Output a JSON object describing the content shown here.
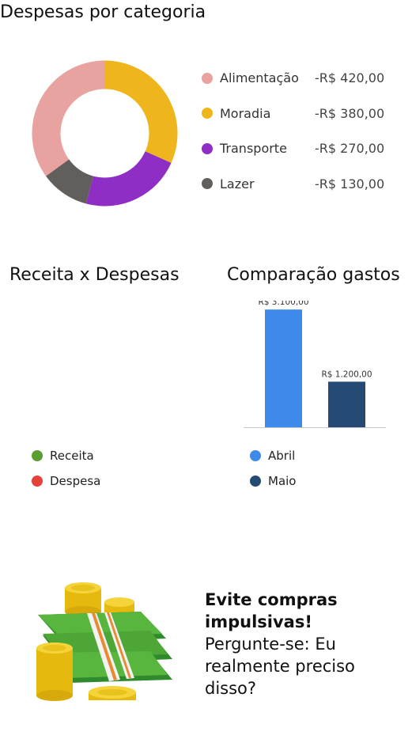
{
  "donut_title": "Despesas por categoria",
  "revenue_title": "Receita x Despesas",
  "compare_title": "Comparação gastos",
  "tip": {
    "headline": "Evite compras impulsivas!",
    "body": "Pergunte-se: Eu realmente preciso disso?"
  },
  "revenue_legend": [
    {
      "label": "Receita",
      "color": "#5a9e32"
    },
    {
      "label": "Despesa",
      "color": "#e8413a"
    }
  ],
  "chart_data": [
    {
      "type": "pie",
      "title": "Despesas por categoria",
      "donut": true,
      "categories": [
        "Alimentação",
        "Moradia",
        "Transporte",
        "Lazer"
      ],
      "values": [
        420,
        380,
        270,
        130
      ],
      "value_labels": [
        "-R$ 420,00",
        "-R$ 380,00",
        "-R$ 270,00",
        "-R$ 130,00"
      ],
      "colors": [
        "#e8a29f",
        "#eeb51c",
        "#8e2ec4",
        "#625e5c"
      ],
      "legend": "right"
    },
    {
      "type": "bar",
      "title": "Comparação gastos",
      "categories": [
        "Abril",
        "Maio"
      ],
      "values": [
        3100,
        1200
      ],
      "value_labels": [
        "R$ 3.100,00",
        "R$ 1.200,00"
      ],
      "colors": [
        "#3d8aeb",
        "#254a74"
      ],
      "ylim": [
        0,
        3500
      ],
      "legend": "bottom"
    }
  ]
}
